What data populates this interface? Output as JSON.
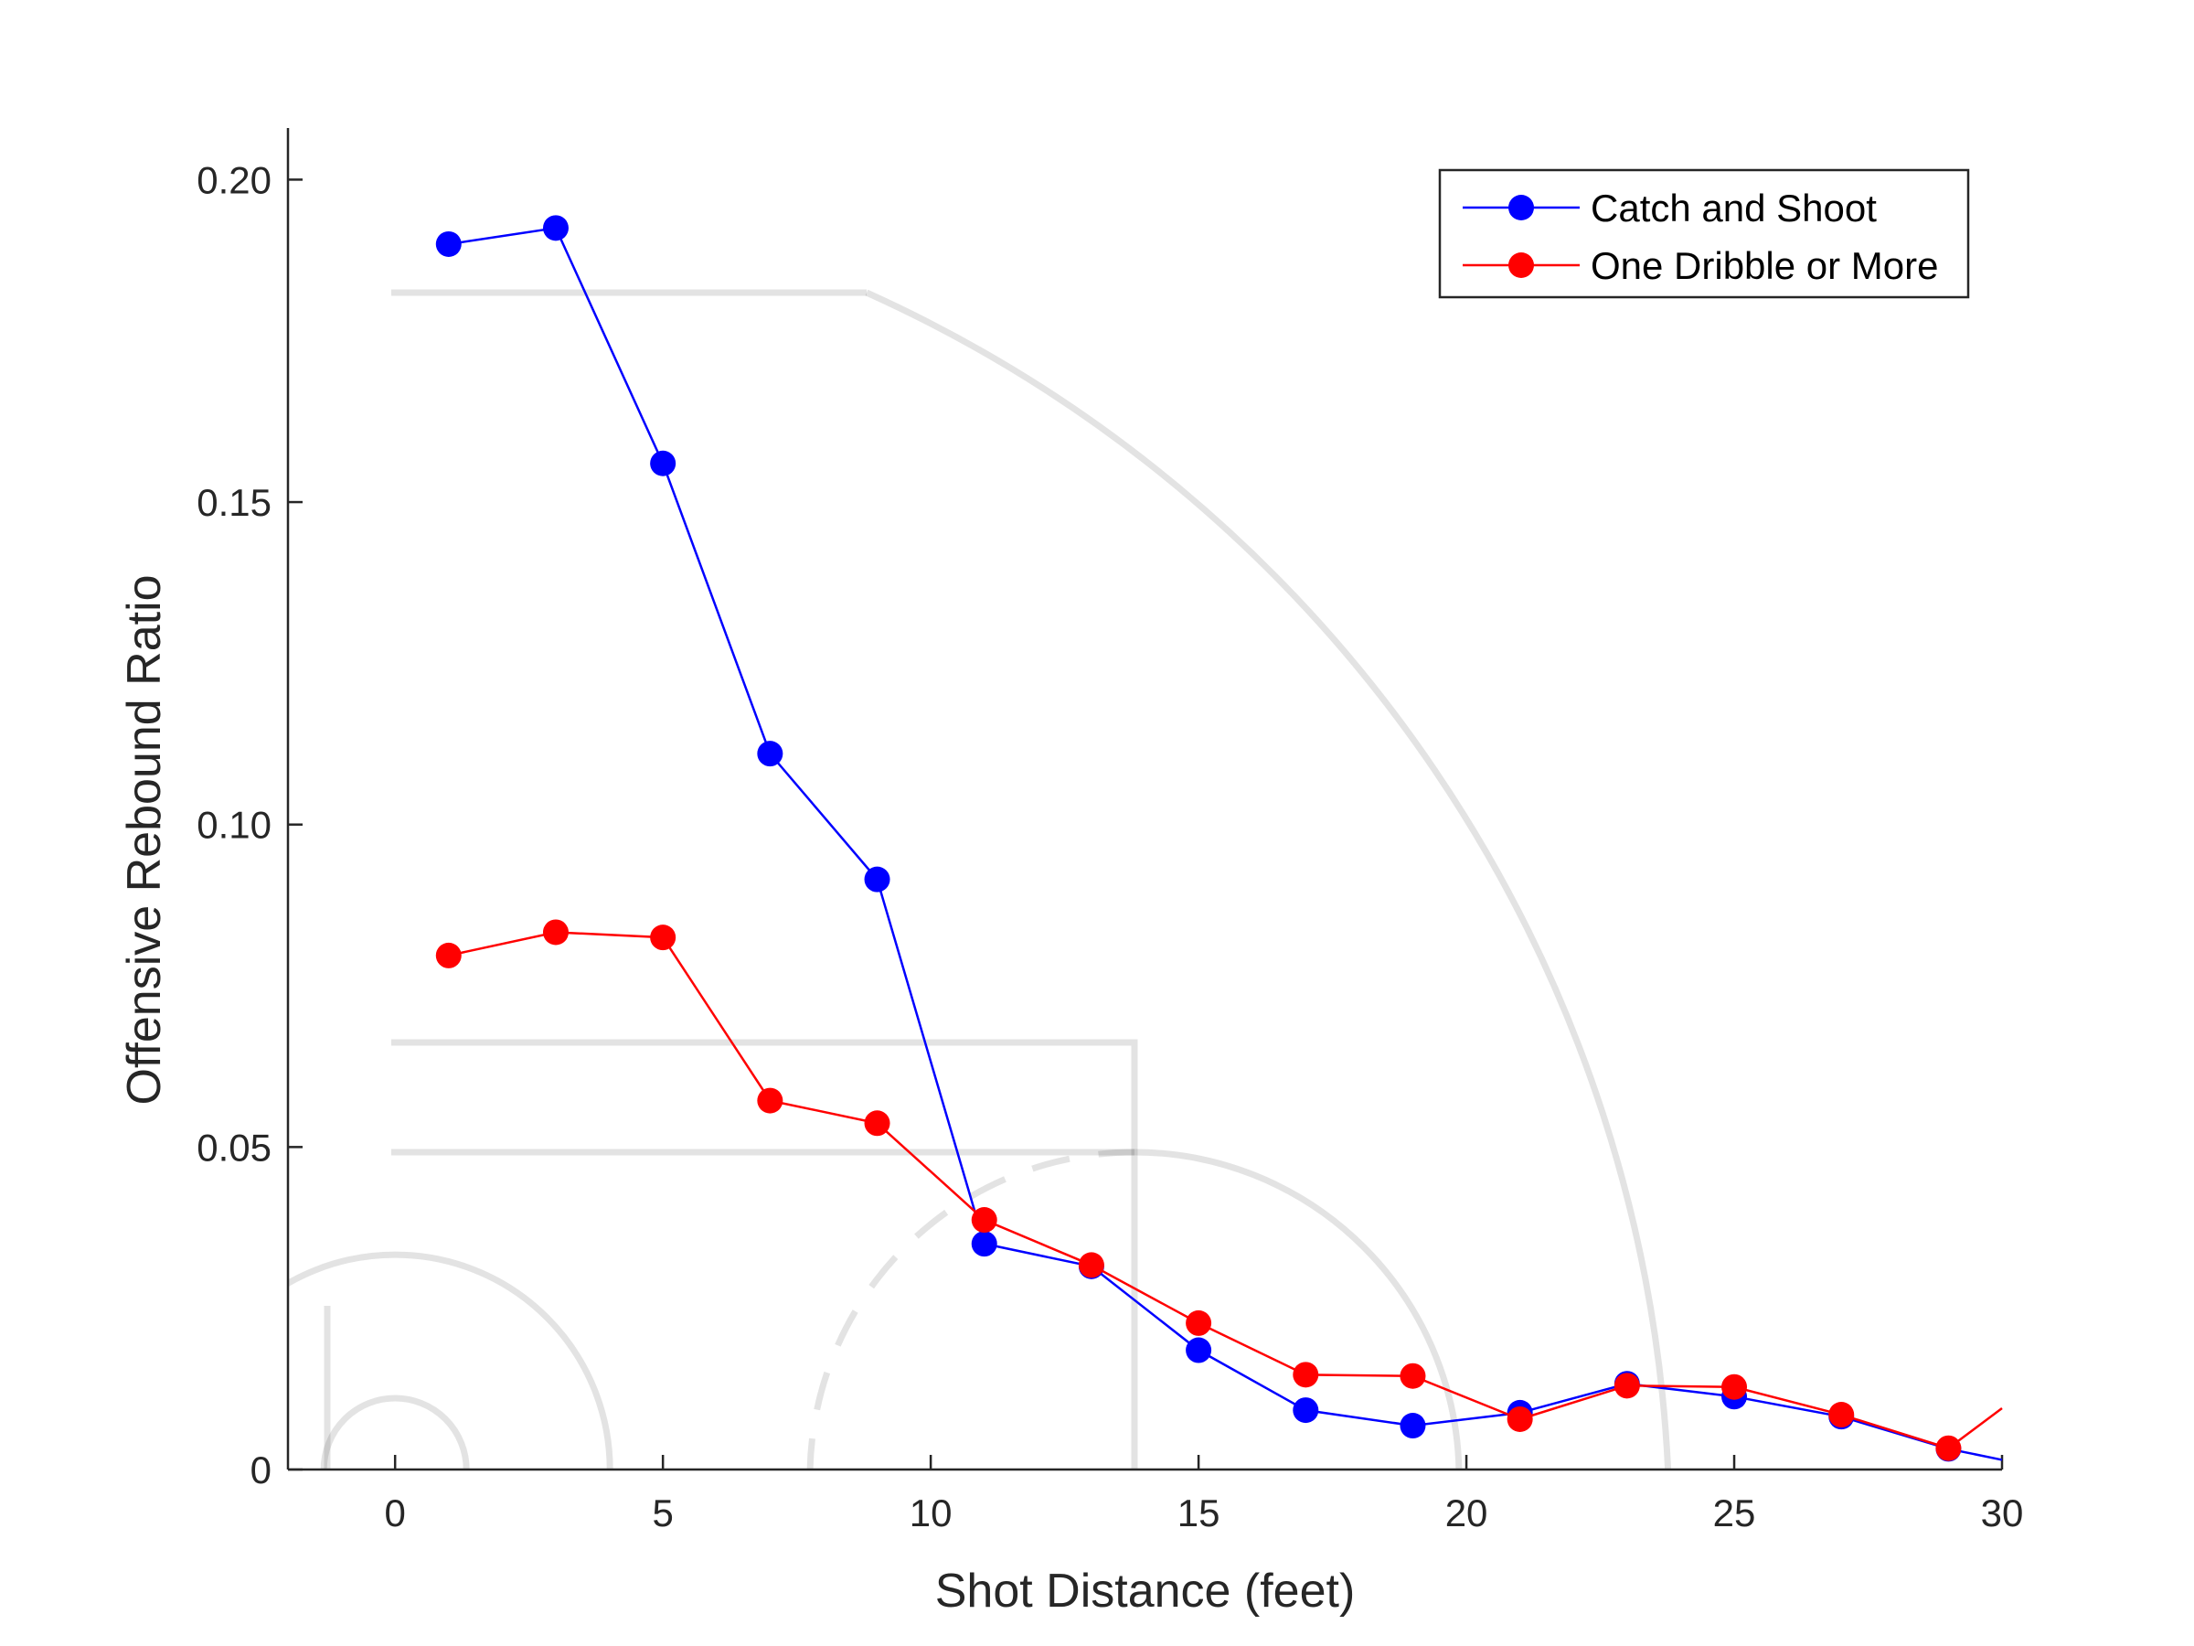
{
  "chart_data": {
    "type": "line",
    "xlabel": "Shot Distance (feet)",
    "ylabel": "Offensive Rebound Ratio",
    "xlim": [
      -2,
      30
    ],
    "ylim": [
      0,
      0.208
    ],
    "x_ticks": [
      0,
      5,
      10,
      15,
      20,
      25,
      30
    ],
    "x_tick_labels": [
      "0",
      "5",
      "10",
      "15",
      "20",
      "25",
      "30"
    ],
    "y_ticks": [
      0,
      0.05,
      0.1,
      0.15,
      0.2
    ],
    "y_tick_labels": [
      "0",
      "0.05",
      "0.10",
      "0.15",
      "0.20"
    ],
    "grid": false,
    "legend_position": "top-right",
    "background": "faint basketball half-court diagram (lane, free-throw circle, restricted area, three-point line)",
    "series": [
      {
        "name": "Catch and Shoot",
        "color": "#0000ff",
        "x": [
          1,
          3,
          5,
          7,
          9,
          11,
          13,
          15,
          17,
          19,
          21,
          23,
          25,
          27,
          29,
          30
        ],
        "y": [
          0.19,
          0.1925,
          0.156,
          0.111,
          0.0915,
          0.035,
          0.0315,
          0.0185,
          0.0092,
          0.0068,
          0.0088,
          0.0133,
          0.0113,
          0.0082,
          0.0032,
          0.0015
        ]
      },
      {
        "name": "One Dribble or More",
        "color": "#ff0000",
        "x": [
          1,
          3,
          5,
          7,
          9,
          11,
          13,
          15,
          17,
          19,
          21,
          23,
          25,
          27,
          29,
          30
        ],
        "y": [
          0.0797,
          0.0833,
          0.0825,
          0.0572,
          0.0537,
          0.0387,
          0.0317,
          0.0227,
          0.0147,
          0.0145,
          0.0078,
          0.013,
          0.0128,
          0.0085,
          0.0033,
          0.0095
        ]
      }
    ]
  }
}
